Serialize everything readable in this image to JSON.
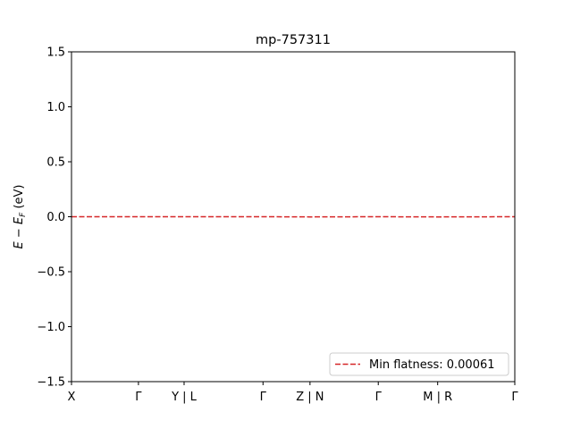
{
  "chart_data": {
    "type": "line",
    "title": "mp-757311",
    "xlabel": "",
    "ylabel": "E − E_F (eV)",
    "ylim": [
      -1.5,
      1.5
    ],
    "yticks": [
      -1.5,
      -1.0,
      -0.5,
      0.0,
      0.5,
      1.0,
      1.5
    ],
    "ytick_labels": [
      "−1.5",
      "−1.0",
      "−0.5",
      "0.0",
      "0.5",
      "1.0",
      "1.5"
    ],
    "xlim": [
      0,
      1
    ],
    "x_ticks": [
      {
        "label": "X",
        "pos": 0.0
      },
      {
        "label": "Γ",
        "pos": 0.151
      },
      {
        "label": "Y | L",
        "pos": 0.254
      },
      {
        "label": "Γ",
        "pos": 0.432
      },
      {
        "label": "Z | N",
        "pos": 0.538
      },
      {
        "label": "Γ",
        "pos": 0.692
      },
      {
        "label": "M | R",
        "pos": 0.826
      },
      {
        "label": "Γ",
        "pos": 1.0
      }
    ],
    "grid": false,
    "legend": {
      "placement": "lower-right"
    },
    "series": [
      {
        "name": "Min flatness: 0.00061",
        "style": "dashed",
        "color": "#d62728",
        "x": [
          0.0,
          0.151,
          0.254,
          0.432,
          0.538,
          0.692,
          0.826,
          1.0
        ],
        "y": [
          0.0,
          0.0,
          0.0,
          0.0,
          -0.002,
          0.0,
          -0.002,
          0.0
        ]
      }
    ]
  }
}
